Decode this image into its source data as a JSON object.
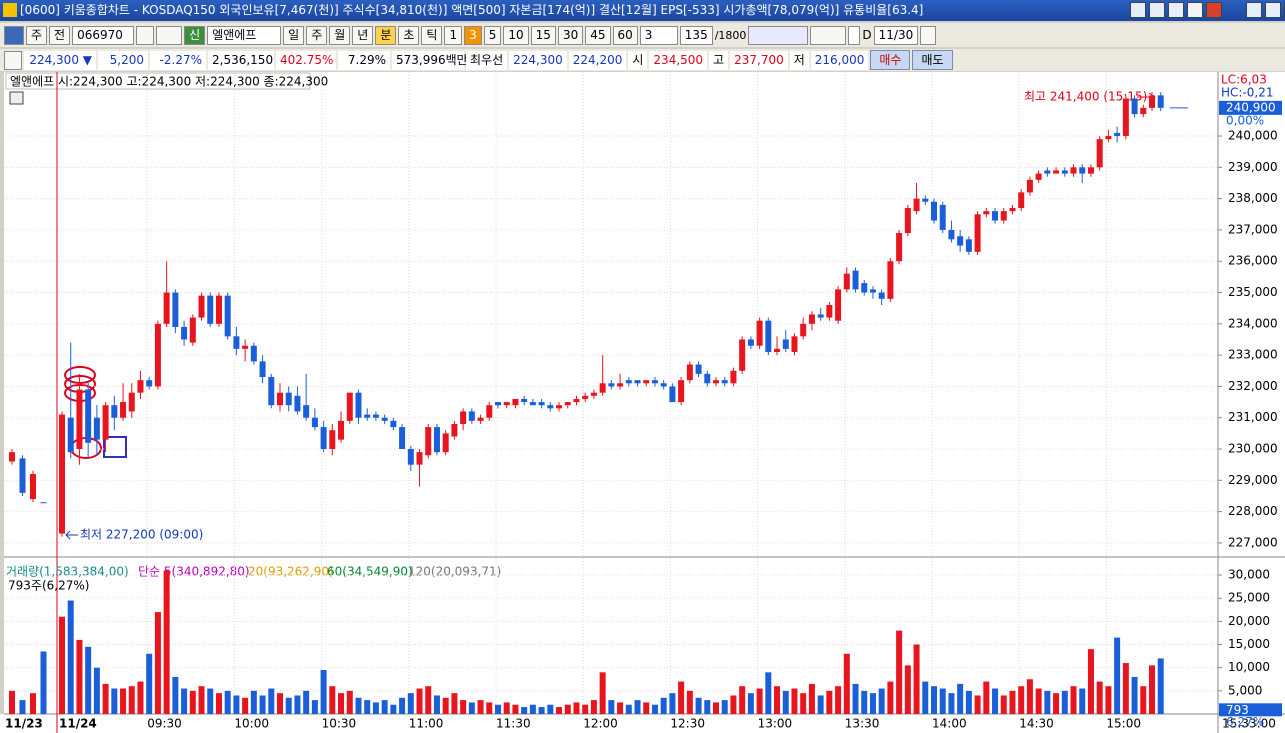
{
  "title_bar": "[0600] 키움종합차트 - KOSDAQ150 외국인보유[7,467(천)] 주식수[34,810(천)] 액면[500] 자본금[174(억)] 결산[12월] EPS[-533] 시가총액[78,079(억)] 유통비율[63.4]",
  "toolbar": [
    "주",
    "전",
    "066970",
    "신",
    "엘앤에프",
    "일",
    "주",
    "월",
    "년",
    "분",
    "초",
    "틱",
    "1",
    "3",
    "5",
    "10",
    "15",
    "30",
    "45",
    "60",
    "3",
    "135",
    "/1800",
    "D",
    "11/30"
  ],
  "quote": [
    "224,300 ▼",
    "5,200",
    "-2.27%",
    "2,536,150",
    "402.75%",
    "7.29%",
    "573,996백만",
    "최우선",
    "224,300",
    "224,200",
    "시",
    "234,500",
    "고",
    "237,700",
    "저",
    "216,000",
    "매수",
    "매도"
  ],
  "chart_data": {
    "type": "candlestick",
    "legend": "엘앤에프 시:224,300 고:224,300 저:224,300 종:224,300",
    "lc": "LC:6,03",
    "hc": "HC:-0,21",
    "high_note": "최고 241,400 (15:15)",
    "low_note": "최저 227,200 (09:00)",
    "last_price": {
      "value": 240900,
      "label": "240,900"
    },
    "change_pct": "0,00%",
    "ylim": [
      226550,
      241950
    ],
    "yticks": [
      {
        "value": 227000,
        "label": "227,000"
      },
      {
        "value": 228000,
        "label": "228,000"
      },
      {
        "value": 229000,
        "label": "229,000"
      },
      {
        "value": 230000,
        "label": "230,000"
      },
      {
        "value": 231000,
        "label": "231,000"
      },
      {
        "value": 232000,
        "label": "232,000"
      },
      {
        "value": 233000,
        "label": "233,000"
      },
      {
        "value": 234000,
        "label": "234,000"
      },
      {
        "value": 235000,
        "label": "235,000"
      },
      {
        "value": 236000,
        "label": "236,000"
      },
      {
        "value": 237000,
        "label": "237,000"
      },
      {
        "value": 238000,
        "label": "238,000"
      },
      {
        "value": 239000,
        "label": "239,000"
      },
      {
        "value": 240000,
        "label": "240,000"
      }
    ],
    "sessions": [
      {
        "label": "11/23",
        "candles": [
          [
            229600,
            230000,
            229500,
            229900
          ],
          [
            229700,
            229800,
            228500,
            228600
          ],
          [
            228400,
            229300,
            228300,
            229200
          ],
          [
            228300,
            228300,
            228300,
            228300
          ]
        ],
        "volumes": [
          5000,
          3000,
          4500,
          13500
        ]
      },
      {
        "label": "11/24",
        "candles": [
          [
            227300,
            231200,
            227200,
            231100
          ],
          [
            231000,
            233400,
            229700,
            229900
          ],
          [
            230000,
            232400,
            229500,
            231900
          ],
          [
            231900,
            232200,
            229700,
            230200
          ],
          [
            231000,
            231400,
            229800,
            230300
          ],
          [
            230300,
            231500,
            229900,
            231400
          ],
          [
            231400,
            231700,
            230600,
            231000
          ],
          [
            231000,
            232100,
            230900,
            231500
          ],
          [
            231200,
            232100,
            231000,
            231800
          ],
          [
            231800,
            232500,
            231600,
            232200
          ],
          [
            232200,
            232300,
            231900,
            232000
          ],
          [
            232000,
            234100,
            231900,
            234000
          ],
          [
            234000,
            236000,
            233900,
            235000
          ],
          [
            235000,
            235100,
            233700,
            233900
          ],
          [
            233900,
            234100,
            233300,
            233500
          ],
          [
            233400,
            234300,
            233300,
            234200
          ],
          [
            234200,
            235000,
            234100,
            234900
          ],
          [
            234900,
            235000,
            233900,
            234000
          ],
          [
            234000,
            235000,
            233900,
            234900
          ],
          [
            234900,
            235000,
            233500,
            233600
          ],
          [
            233600,
            233900,
            233000,
            233200
          ],
          [
            233200,
            233500,
            232800,
            233300
          ],
          [
            233300,
            233400,
            232700,
            232800
          ],
          [
            232800,
            233000,
            232100,
            232300
          ],
          [
            232300,
            232400,
            231300,
            231400
          ],
          [
            231400,
            232100,
            231200,
            231800
          ],
          [
            231800,
            232000,
            231200,
            231400
          ],
          [
            231700,
            232000,
            231100,
            231200
          ],
          [
            231400,
            232400,
            230900,
            231000
          ],
          [
            231000,
            231300,
            230600,
            230700
          ],
          [
            230700,
            230900,
            229900,
            230000
          ],
          [
            230000,
            230800,
            229800,
            230600
          ],
          [
            230300,
            231200,
            230200,
            230900
          ],
          [
            230900,
            231800,
            230800,
            231800
          ],
          [
            231800,
            231900,
            230800,
            231000
          ],
          [
            231100,
            231300,
            230900,
            231000
          ],
          [
            231100,
            231200,
            230900,
            231000
          ],
          [
            231000,
            231100,
            230800,
            230900
          ],
          [
            230900,
            231000,
            230600,
            230700
          ],
          [
            230700,
            230800,
            230000,
            230000
          ],
          [
            230000,
            230100,
            229300,
            229500
          ],
          [
            229500,
            230000,
            228800,
            229900
          ],
          [
            229800,
            230800,
            229700,
            230700
          ],
          [
            230700,
            230800,
            229800,
            229900
          ],
          [
            229900,
            230600,
            229800,
            230500
          ],
          [
            230400,
            230900,
            230300,
            230800
          ],
          [
            230800,
            231300,
            230600,
            231200
          ],
          [
            231200,
            231300,
            230800,
            230900
          ],
          [
            230900,
            231100,
            230800,
            231000
          ],
          [
            231000,
            231500,
            230900,
            231400
          ],
          [
            231500,
            231500,
            231300,
            231400
          ],
          [
            231400,
            231500,
            231300,
            231500
          ],
          [
            231400,
            231600,
            231300,
            231600
          ],
          [
            231600,
            231700,
            231400,
            231500
          ],
          [
            231500,
            231600,
            231400,
            231400
          ],
          [
            231500,
            231600,
            231300,
            231400
          ],
          [
            231400,
            231500,
            231200,
            231300
          ],
          [
            231300,
            231500,
            231200,
            231400
          ],
          [
            231400,
            231500,
            231300,
            231500
          ],
          [
            231500,
            231700,
            231400,
            231600
          ],
          [
            231600,
            231800,
            231500,
            231700
          ],
          [
            231700,
            231900,
            231600,
            231800
          ],
          [
            231800,
            233000,
            231700,
            232100
          ],
          [
            232100,
            232200,
            231900,
            232000
          ],
          [
            232000,
            232400,
            231900,
            232100
          ],
          [
            232200,
            232300,
            232000,
            232100
          ],
          [
            232200,
            232200,
            232000,
            232100
          ],
          [
            232100,
            232200,
            232000,
            232200
          ],
          [
            232200,
            232300,
            232000,
            232100
          ],
          [
            232100,
            232200,
            231900,
            232000
          ],
          [
            232000,
            232100,
            231500,
            231500
          ],
          [
            231500,
            232300,
            231400,
            232200
          ],
          [
            232200,
            232800,
            232100,
            232700
          ],
          [
            232700,
            232800,
            232300,
            232400
          ],
          [
            232400,
            232500,
            232000,
            232100
          ],
          [
            232100,
            232300,
            232000,
            232200
          ],
          [
            232200,
            232300,
            232000,
            232100
          ],
          [
            232100,
            232600,
            232000,
            232500
          ],
          [
            232500,
            233600,
            232400,
            233500
          ],
          [
            233500,
            233600,
            233200,
            233300
          ],
          [
            233300,
            234200,
            233200,
            234100
          ],
          [
            234100,
            234200,
            233000,
            233100
          ],
          [
            233100,
            233600,
            233000,
            233200
          ],
          [
            233500,
            233800,
            233100,
            233200
          ],
          [
            233100,
            233700,
            233000,
            233600
          ],
          [
            233600,
            234200,
            233500,
            234000
          ],
          [
            234000,
            234400,
            233800,
            234300
          ],
          [
            234300,
            234500,
            234100,
            234200
          ],
          [
            234200,
            234700,
            234100,
            234600
          ],
          [
            234100,
            235200,
            234000,
            235100
          ],
          [
            235100,
            235800,
            235000,
            235600
          ],
          [
            235700,
            235800,
            235000,
            235100
          ],
          [
            235300,
            235400,
            234900,
            235000
          ],
          [
            235100,
            235200,
            234800,
            235000
          ],
          [
            235000,
            235100,
            234600,
            234800
          ],
          [
            234800,
            236100,
            234700,
            236000
          ],
          [
            236000,
            237000,
            235900,
            236900
          ],
          [
            236900,
            237800,
            236800,
            237700
          ],
          [
            237600,
            238500,
            237500,
            238000
          ],
          [
            238000,
            238100,
            237800,
            237900
          ],
          [
            237900,
            238000,
            237200,
            237300
          ],
          [
            237800,
            237900,
            236900,
            237000
          ],
          [
            237000,
            237300,
            236600,
            236700
          ],
          [
            236800,
            237000,
            236300,
            236500
          ],
          [
            236700,
            236800,
            236200,
            236300
          ],
          [
            236300,
            237600,
            236200,
            237500
          ],
          [
            237500,
            237700,
            237400,
            237600
          ],
          [
            237600,
            237700,
            237200,
            237300
          ],
          [
            237300,
            237700,
            237200,
            237600
          ],
          [
            237600,
            237800,
            237500,
            237700
          ],
          [
            237700,
            238300,
            237600,
            238200
          ],
          [
            238200,
            238700,
            238100,
            238600
          ],
          [
            238600,
            238900,
            238500,
            238800
          ],
          [
            238900,
            239000,
            238700,
            238800
          ],
          [
            238800,
            239000,
            238800,
            238900
          ],
          [
            238900,
            239000,
            238700,
            238800
          ],
          [
            238800,
            239100,
            238700,
            239000
          ],
          [
            239000,
            239100,
            238500,
            238800
          ],
          [
            238800,
            239100,
            238700,
            239000
          ],
          [
            239000,
            240000,
            238900,
            239900
          ],
          [
            239900,
            240200,
            239800,
            240000
          ],
          [
            240100,
            240300,
            239800,
            240000
          ],
          [
            240000,
            241300,
            239900,
            241200
          ],
          [
            241200,
            241300,
            240600,
            240700
          ],
          [
            240700,
            241000,
            240600,
            240900
          ],
          [
            240900,
            241400,
            240800,
            241300
          ],
          [
            241300,
            241400,
            240800,
            240900
          ]
        ],
        "volumes": [
          21000,
          24500,
          16000,
          14500,
          10000,
          6500,
          5500,
          5500,
          6000,
          7000,
          13000,
          22000,
          31000,
          8000,
          5500,
          5000,
          6000,
          5500,
          4500,
          5000,
          4000,
          3500,
          5000,
          4000,
          5500,
          4500,
          3500,
          4000,
          5000,
          3000,
          9500,
          6000,
          4500,
          5000,
          3500,
          3000,
          2500,
          3000,
          2000,
          3500,
          4500,
          5500,
          6000,
          4000,
          3500,
          4500,
          3000,
          2500,
          3000,
          2500,
          2000,
          2500,
          2000,
          1500,
          2000,
          1500,
          2000,
          1500,
          2000,
          2500,
          2000,
          3000,
          9000,
          3000,
          2500,
          2000,
          3000,
          2500,
          2000,
          3500,
          4500,
          7000,
          5000,
          3500,
          3000,
          2500,
          3000,
          4000,
          6000,
          4500,
          5500,
          9000,
          6000,
          5000,
          5500,
          4500,
          6500,
          4000,
          5000,
          6000,
          13000,
          6500,
          5000,
          4500,
          5500,
          7000,
          18000,
          10500,
          15000,
          7000,
          6000,
          5500,
          4500,
          6500,
          5000,
          4000,
          7000,
          5500,
          4000,
          5000,
          6000,
          7500,
          5500,
          5000,
          4500,
          5000,
          6000,
          5500,
          14000,
          7000,
          6000,
          16500,
          11000,
          8000,
          6000,
          10500,
          12000
        ]
      }
    ],
    "time_labels": [
      "09:30",
      "10:00",
      "10:30",
      "11:00",
      "11:30",
      "12:00",
      "12:30",
      "13:00",
      "13:30",
      "14:00",
      "14:30",
      "15:00"
    ],
    "clock": "15:33:00",
    "volume": {
      "legend": [
        "거래량(1,583,384,00)",
        "단순 5(340,892,80)",
        "20(93,262,90)",
        "60(34,549,90)",
        "120(20,093,71)"
      ],
      "note": "793주(6,27%)",
      "ylim": [
        0,
        32600
      ],
      "yticks": [
        {
          "value": 5000,
          "label": "5,000"
        },
        {
          "value": 10000,
          "label": "10,000"
        },
        {
          "value": 15000,
          "label": "15,000"
        },
        {
          "value": 20000,
          "label": "20,000"
        },
        {
          "value": 25000,
          "label": "25,000"
        },
        {
          "value": 30000,
          "label": "30,000"
        }
      ],
      "last": 793,
      "last_pct": "6,27%"
    }
  }
}
